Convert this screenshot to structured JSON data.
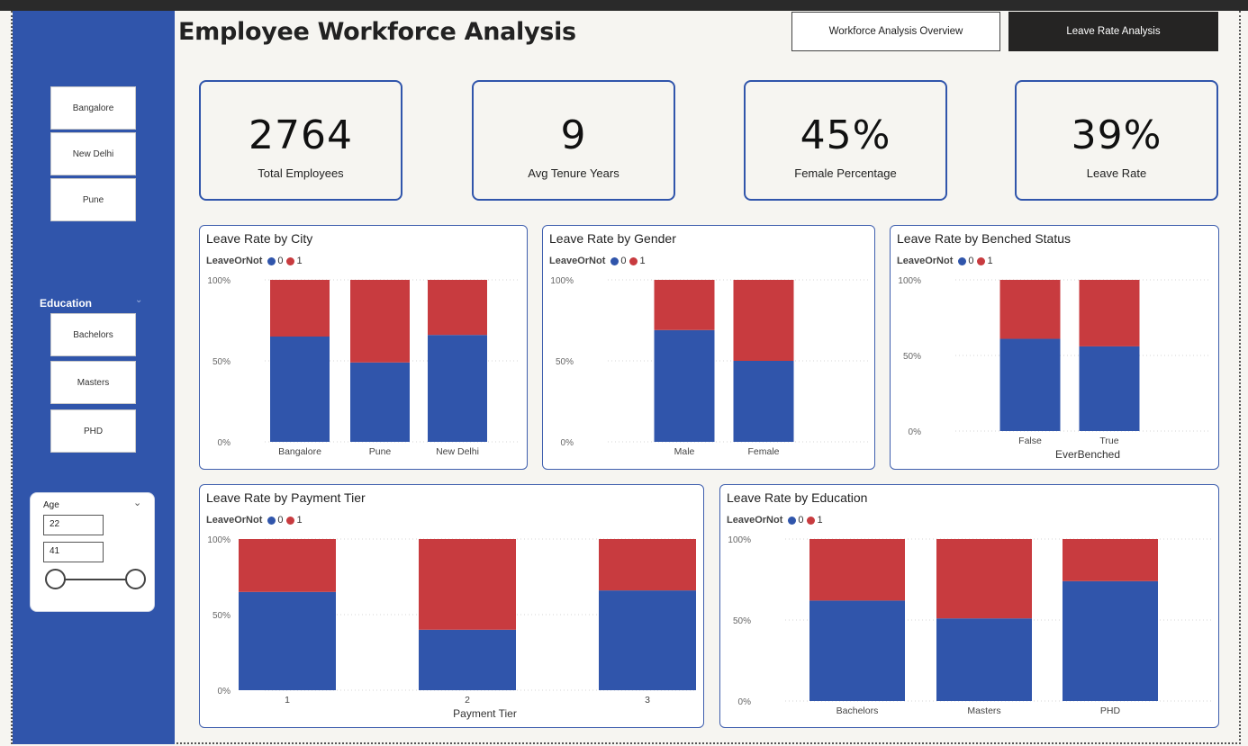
{
  "header": {
    "title": "Employee Workforce Analysis",
    "nav": [
      {
        "label": "Workforce Analysis Overview"
      },
      {
        "label": "Leave Rate Analysis"
      }
    ]
  },
  "sidebar": {
    "city_slicer": [
      "Bangalore",
      "New Delhi",
      "Pune"
    ],
    "education_title": "Education",
    "education_slicer": [
      "Bachelors",
      "Masters",
      "PHD"
    ],
    "age": {
      "label": "Age",
      "min_value": "22",
      "max_value": "41"
    }
  },
  "kpis": [
    {
      "value": "2764",
      "label": "Total Employees"
    },
    {
      "value": "9",
      "label": "Avg Tenure Years"
    },
    {
      "value": "45%",
      "label": "Female Percentage"
    },
    {
      "value": "39%",
      "label": "Leave Rate"
    }
  ],
  "colors": {
    "stay": "#3055ab",
    "leave": "#c83b3f",
    "accent": "#3055ab"
  },
  "legend": {
    "title": "LeaveOrNot",
    "items": [
      "0",
      "1"
    ]
  },
  "chart_data": [
    {
      "type": "bar",
      "stacked": "100%",
      "title": "Leave Rate by City",
      "categories": [
        "Bangalore",
        "Pune",
        "New Delhi"
      ],
      "series": [
        {
          "name": "0",
          "values": [
            65,
            49,
            66
          ]
        },
        {
          "name": "1",
          "values": [
            35,
            51,
            34
          ]
        }
      ],
      "xlabel": "",
      "yticks": [
        "0%",
        "50%",
        "100%"
      ],
      "ylim": [
        0,
        100
      ]
    },
    {
      "type": "bar",
      "stacked": "100%",
      "title": "Leave Rate by Gender",
      "categories": [
        "Male",
        "Female"
      ],
      "series": [
        {
          "name": "0",
          "values": [
            69,
            50
          ]
        },
        {
          "name": "1",
          "values": [
            31,
            50
          ]
        }
      ],
      "xlabel": "",
      "yticks": [
        "0%",
        "50%",
        "100%"
      ],
      "ylim": [
        0,
        100
      ]
    },
    {
      "type": "bar",
      "stacked": "100%",
      "title": "Leave Rate by Benched Status",
      "categories": [
        "False",
        "True"
      ],
      "series": [
        {
          "name": "0",
          "values": [
            61,
            56
          ]
        },
        {
          "name": "1",
          "values": [
            39,
            44
          ]
        }
      ],
      "xlabel": "EverBenched",
      "yticks": [
        "0%",
        "50%",
        "100%"
      ],
      "ylim": [
        0,
        100
      ]
    },
    {
      "type": "bar",
      "stacked": "100%",
      "title": "Leave Rate by Payment Tier",
      "categories": [
        "1",
        "2",
        "3"
      ],
      "series": [
        {
          "name": "0",
          "values": [
            65,
            40,
            66
          ]
        },
        {
          "name": "1",
          "values": [
            35,
            60,
            34
          ]
        }
      ],
      "xlabel": "Payment Tier",
      "yticks": [
        "0%",
        "50%",
        "100%"
      ],
      "ylim": [
        0,
        100
      ]
    },
    {
      "type": "bar",
      "stacked": "100%",
      "title": "Leave Rate by Education",
      "categories": [
        "Bachelors",
        "Masters",
        "PHD"
      ],
      "series": [
        {
          "name": "0",
          "values": [
            62,
            51,
            74
          ]
        },
        {
          "name": "1",
          "values": [
            38,
            49,
            26
          ]
        }
      ],
      "xlabel": "",
      "yticks": [
        "0%",
        "50%",
        "100%"
      ],
      "ylim": [
        0,
        100
      ]
    }
  ]
}
